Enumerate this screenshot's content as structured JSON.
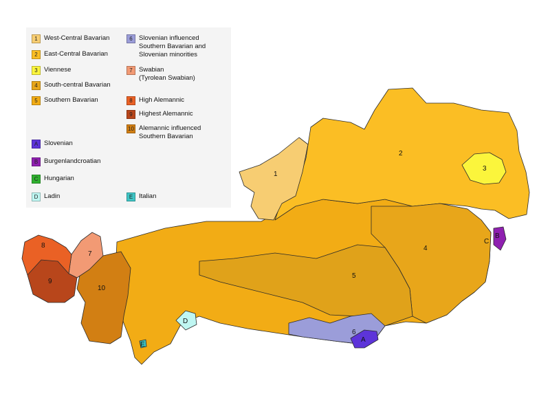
{
  "legend": {
    "items": [
      {
        "code": "1",
        "label": "West-Central Bavarian",
        "color": "#f7cd72"
      },
      {
        "code": "2",
        "label": "East-Central Bavarian",
        "color": "#fbbe24"
      },
      {
        "code": "3",
        "label": "Viennese",
        "color": "#fbf53c"
      },
      {
        "code": "4",
        "label": "South-central Bavarian",
        "color": "#e8a61a"
      },
      {
        "code": "5",
        "label": "Southern Bavarian",
        "color": "#f2ac15"
      },
      {
        "code": "6",
        "label": "Slovenian influenced\nSouthern Bavarian and\nSlovenian minorities",
        "color": "#9b9dd9"
      },
      {
        "code": "7",
        "label": "Swabian\n(Tyrolean Swabian)",
        "color": "#f29a74"
      },
      {
        "code": "8",
        "label": "High Alemannic",
        "color": "#ea6125"
      },
      {
        "code": "9",
        "label": "Highest Alemannic",
        "color": "#b8461b"
      },
      {
        "code": "10",
        "label": "Alemannic influenced\nSouthern Bavarian",
        "color": "#d27f13"
      },
      {
        "code": "A",
        "label": "Slovenian",
        "color": "#5d34d9"
      },
      {
        "code": "B",
        "label": "Burgenlandcroatian",
        "color": "#8f20b0"
      },
      {
        "code": "C",
        "label": "Hungarian",
        "color": "#2fb02f"
      },
      {
        "code": "D",
        "label": "Ladin",
        "color": "#bff6f2"
      },
      {
        "code": "E",
        "label": "Italian",
        "color": "#3fc4c4"
      }
    ]
  },
  "map_labels": [
    "1",
    "2",
    "3",
    "4",
    "5",
    "6",
    "7",
    "8",
    "9",
    "10",
    "A",
    "B",
    "C",
    "D",
    "E"
  ]
}
